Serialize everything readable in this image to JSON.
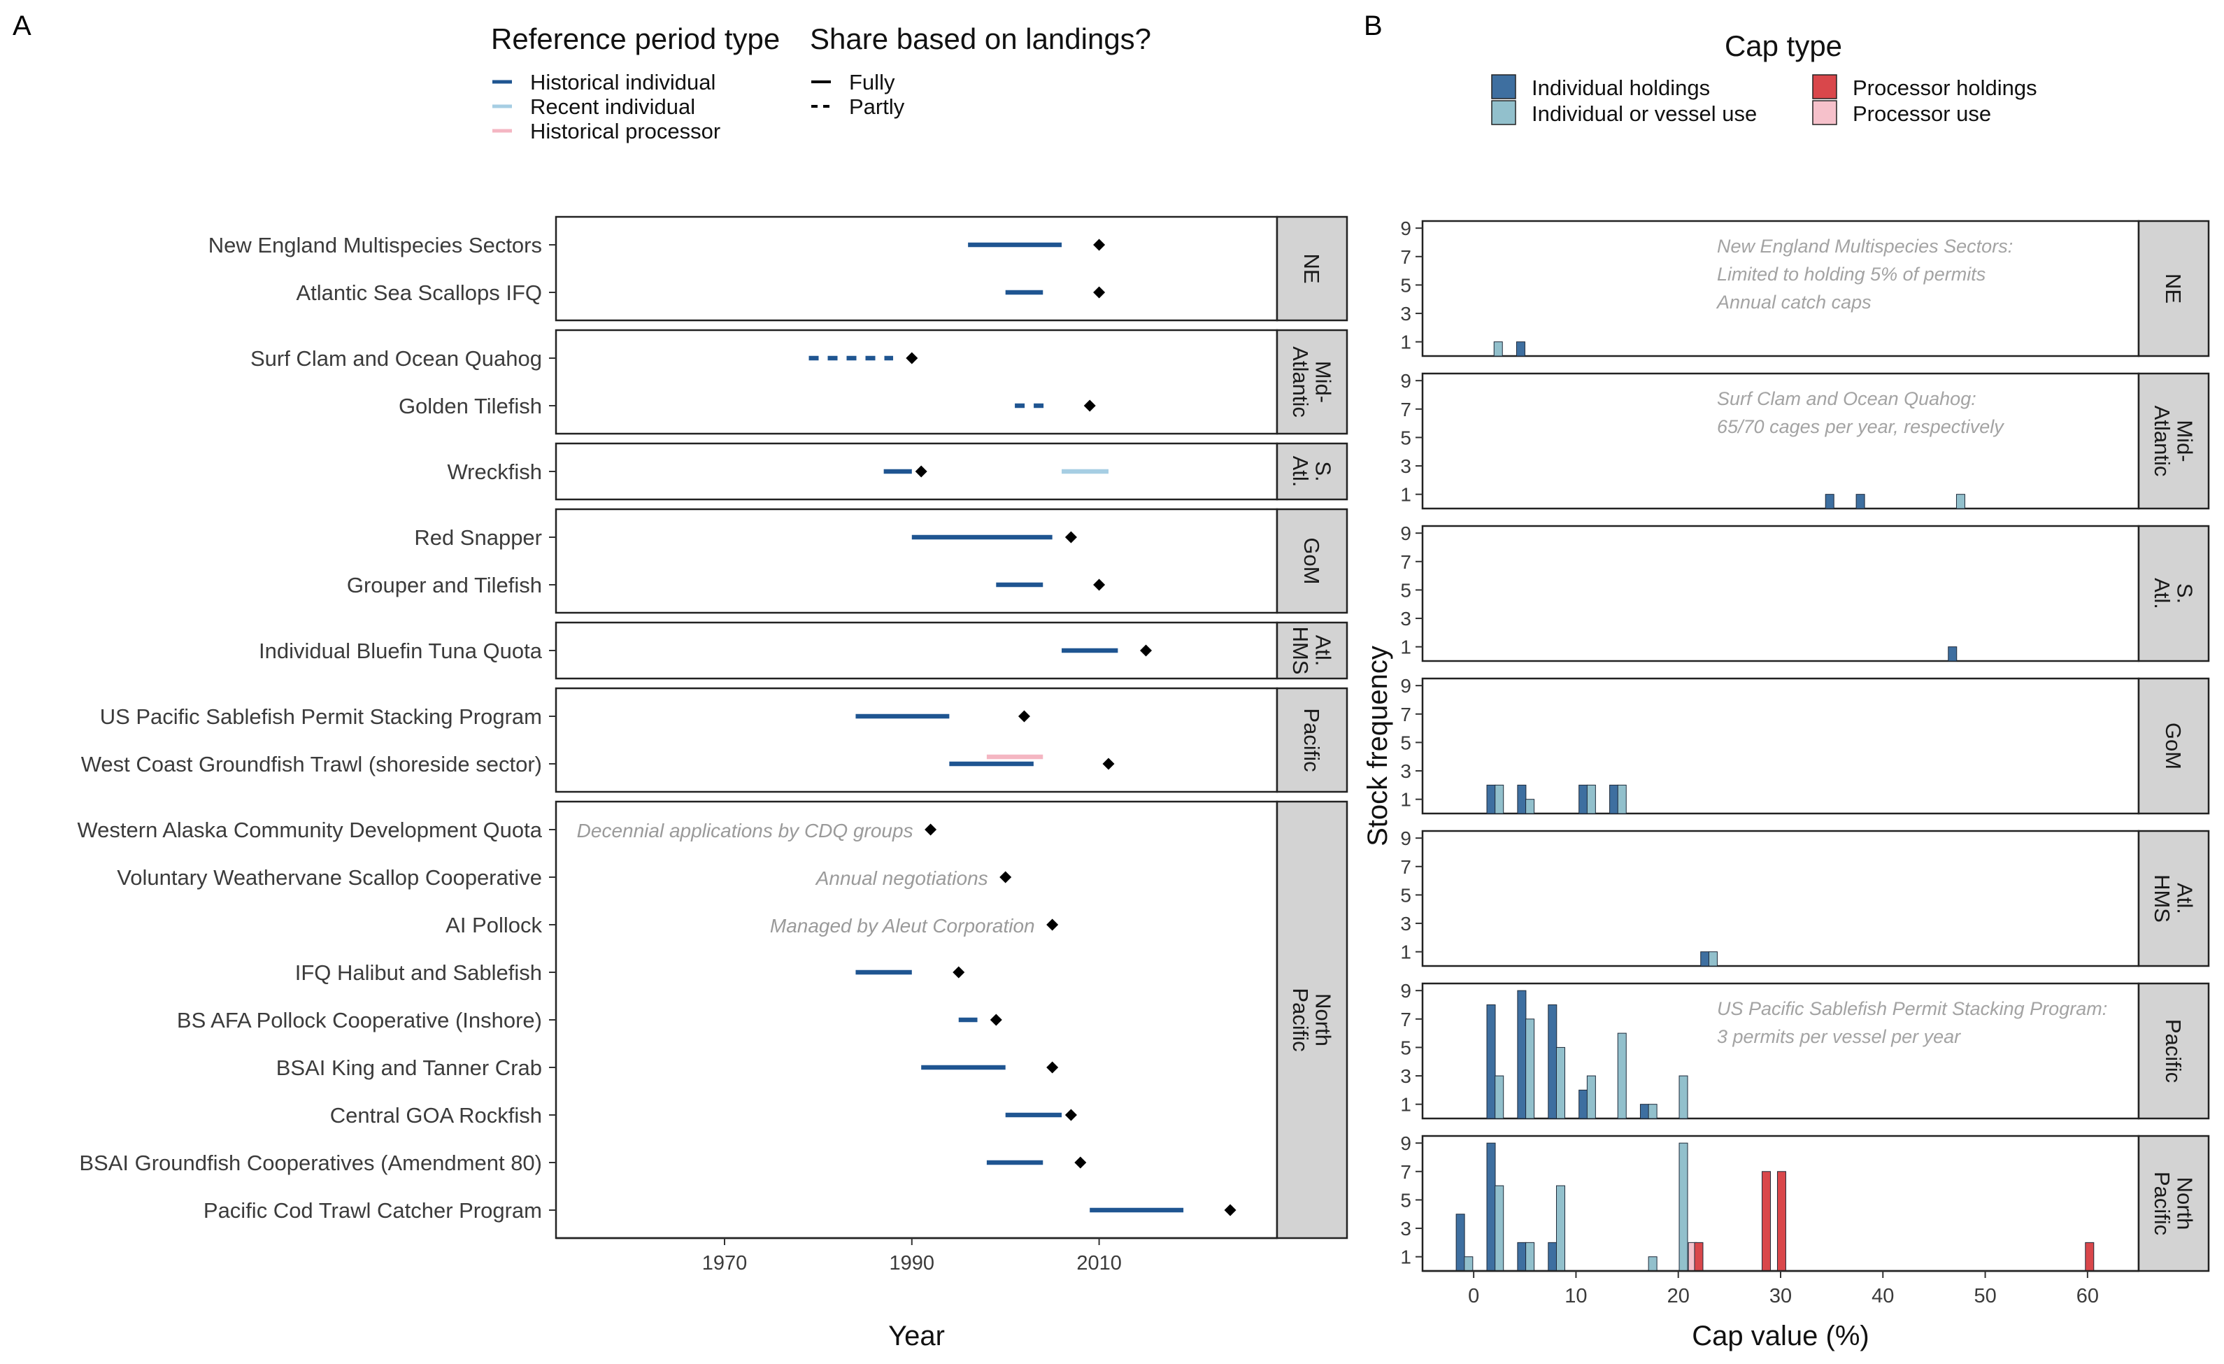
{
  "panel_labels": {
    "a": "A",
    "b": "B"
  },
  "legend_a": {
    "title_ref": "Reference period type",
    "ref_items": [
      {
        "label": "Historical individual",
        "color": "#1F5591"
      },
      {
        "label": "Recent individual",
        "color": "#A6CEE3"
      },
      {
        "label": "Historical processor",
        "color": "#F4B6C2"
      }
    ],
    "title_share": "Share based on landings?",
    "share_items": [
      {
        "label": "Fully",
        "dash": "solid"
      },
      {
        "label": "Partly",
        "dash": "dashed"
      }
    ]
  },
  "legend_b": {
    "title": "Cap type",
    "items": [
      {
        "label": "Individual holdings",
        "color": "#3E6FA0"
      },
      {
        "label": "Individual or vessel use",
        "color": "#92C0CC"
      },
      {
        "label": "Processor holdings",
        "color": "#D9474B"
      },
      {
        "label": "Processor use",
        "color": "#F6C1CB"
      }
    ]
  },
  "chart_data": [
    {
      "type": "timeline",
      "panel": "A",
      "xlabel": "Year",
      "xlim": [
        1952,
        2029
      ],
      "xticks": [
        1970,
        1990,
        2010
      ],
      "facets": [
        {
          "label": "NE",
          "rows": [
            {
              "name": "New England Multispecies Sectors",
              "point": 2010,
              "segments": [
                {
                  "start": 1996,
                  "end": 2006,
                  "type": "Historical individual",
                  "share": "Fully"
                }
              ]
            },
            {
              "name": "Atlantic Sea Scallops IFQ",
              "point": 2010,
              "segments": [
                {
                  "start": 2000,
                  "end": 2004,
                  "type": "Historical individual",
                  "share": "Fully"
                }
              ]
            }
          ]
        },
        {
          "label": "Mid-\nAtlantic",
          "rows": [
            {
              "name": "Surf Clam and Ocean Quahog",
              "point": 1990,
              "segments": [
                {
                  "start": 1979,
                  "end": 1988,
                  "type": "Historical individual",
                  "share": "Partly"
                }
              ]
            },
            {
              "name": "Golden Tilefish",
              "point": 2009,
              "segments": [
                {
                  "start": 2001,
                  "end": 2005,
                  "type": "Historical individual",
                  "share": "Partly"
                }
              ]
            }
          ]
        },
        {
          "label": "S.\nAtl.",
          "rows": [
            {
              "name": "Wreckfish",
              "point": 1991,
              "segments": [
                {
                  "start": 1987,
                  "end": 1990,
                  "type": "Historical individual",
                  "share": "Fully"
                },
                {
                  "start": 2006,
                  "end": 2011,
                  "type": "Recent individual",
                  "share": "Fully"
                }
              ]
            }
          ]
        },
        {
          "label": "GoM",
          "rows": [
            {
              "name": "Red Snapper",
              "point": 2007,
              "segments": [
                {
                  "start": 1990,
                  "end": 2005,
                  "type": "Historical individual",
                  "share": "Fully"
                }
              ]
            },
            {
              "name": "Grouper and Tilefish",
              "point": 2010,
              "segments": [
                {
                  "start": 1999,
                  "end": 2004,
                  "type": "Historical individual",
                  "share": "Fully"
                }
              ]
            }
          ]
        },
        {
          "label": "Atl.\nHMS",
          "rows": [
            {
              "name": "Individual Bluefin Tuna Quota",
              "point": 2015,
              "segments": [
                {
                  "start": 2006,
                  "end": 2012,
                  "type": "Historical individual",
                  "share": "Fully"
                }
              ]
            }
          ]
        },
        {
          "label": "Pacific",
          "rows": [
            {
              "name": "US Pacific Sablefish Permit Stacking Program",
              "point": 2002,
              "segments": [
                {
                  "start": 1984,
                  "end": 1994,
                  "type": "Historical individual",
                  "share": "Fully"
                }
              ]
            },
            {
              "name": "West Coast Groundfish Trawl (shoreside sector)",
              "point": 2011,
              "segments": [
                {
                  "start": 1998,
                  "end": 2004,
                  "type": "Historical processor",
                  "share": "Fully"
                },
                {
                  "start": 1994,
                  "end": 2003,
                  "type": "Historical individual",
                  "share": "Fully"
                }
              ]
            }
          ]
        },
        {
          "label": "North\nPacific",
          "rows": [
            {
              "name": "Western Alaska Community Development Quota",
              "point": 1992,
              "segments": [],
              "note": "Decennial applications by CDQ groups"
            },
            {
              "name": "Voluntary Weathervane Scallop Cooperative",
              "point": 2000,
              "segments": [],
              "note": "Annual negotiations"
            },
            {
              "name": "AI Pollock",
              "point": 2005,
              "segments": [],
              "note": "Managed by Aleut Corporation"
            },
            {
              "name": "IFQ Halibut and Sablefish",
              "point": 1995,
              "segments": [
                {
                  "start": 1984,
                  "end": 1990,
                  "type": "Historical individual",
                  "share": "Fully"
                }
              ]
            },
            {
              "name": "BS AFA Pollock Cooperative (Inshore)",
              "point": 1999,
              "segments": [
                {
                  "start": 1995,
                  "end": 1997,
                  "type": "Historical individual",
                  "share": "Fully"
                }
              ]
            },
            {
              "name": "BSAI King and Tanner Crab",
              "point": 2005,
              "segments": [
                {
                  "start": 1991,
                  "end": 2000,
                  "type": "Historical individual",
                  "share": "Fully"
                }
              ]
            },
            {
              "name": "Central GOA Rockfish",
              "point": 2007,
              "segments": [
                {
                  "start": 2000,
                  "end": 2006,
                  "type": "Historical individual",
                  "share": "Fully"
                }
              ]
            },
            {
              "name": "BSAI Groundfish Cooperatives (Amendment 80)",
              "point": 2008,
              "segments": [
                {
                  "start": 1998,
                  "end": 2004,
                  "type": "Historical individual",
                  "share": "Fully"
                }
              ]
            },
            {
              "name": "Pacific Cod Trawl Catcher Program",
              "point": 2024,
              "segments": [
                {
                  "start": 2009,
                  "end": 2019,
                  "type": "Historical individual",
                  "share": "Fully"
                }
              ]
            }
          ]
        }
      ]
    },
    {
      "type": "bar",
      "panel": "B",
      "xlabel": "Cap value (%)",
      "ylabel": "Stock frequency",
      "xlim": [
        -5,
        65
      ],
      "xticks": [
        0,
        10,
        20,
        30,
        40,
        50,
        60
      ],
      "ylim": [
        0,
        9.5
      ],
      "yticks": [
        1,
        3,
        5,
        7,
        9
      ],
      "facets": [
        {
          "label": "NE",
          "note": [
            "New England Multispecies Sectors:",
            "Limited to holding 5% of permits",
            "Annual catch caps"
          ],
          "bars": [
            {
              "x": 2.4,
              "type": "Individual or vessel use",
              "value": 1
            },
            {
              "x": 4.6,
              "type": "Individual holdings",
              "value": 1
            }
          ]
        },
        {
          "label": "Mid-\nAtlantic",
          "note": [
            "Surf Clam and Ocean Quahog:",
            "65/70 cages per year, respectively"
          ],
          "bars": [
            {
              "x": 34.8,
              "type": "Individual holdings",
              "value": 1
            },
            {
              "x": 37.8,
              "type": "Individual holdings",
              "value": 1
            },
            {
              "x": 47.6,
              "type": "Individual or vessel use",
              "value": 1
            }
          ]
        },
        {
          "label": "S.\nAtl.",
          "note": [],
          "bars": [
            {
              "x": 46.8,
              "type": "Individual holdings",
              "value": 1
            }
          ]
        },
        {
          "label": "GoM",
          "note": [],
          "bars": [
            {
              "x": 1.7,
              "type": "Individual holdings",
              "value": 2
            },
            {
              "x": 2.5,
              "type": "Individual or vessel use",
              "value": 2
            },
            {
              "x": 4.7,
              "type": "Individual holdings",
              "value": 2
            },
            {
              "x": 5.5,
              "type": "Individual or vessel use",
              "value": 1
            },
            {
              "x": 10.7,
              "type": "Individual holdings",
              "value": 2
            },
            {
              "x": 11.5,
              "type": "Individual or vessel use",
              "value": 2
            },
            {
              "x": 13.7,
              "type": "Individual holdings",
              "value": 2
            },
            {
              "x": 14.5,
              "type": "Individual or vessel use",
              "value": 2
            }
          ]
        },
        {
          "label": "Atl.\nHMS",
          "note": [],
          "bars": [
            {
              "x": 22.6,
              "type": "Individual holdings",
              "value": 1
            },
            {
              "x": 23.4,
              "type": "Individual or vessel use",
              "value": 1
            }
          ]
        },
        {
          "label": "Pacific",
          "note": [
            "US Pacific Sablefish Permit Stacking Program:",
            "3 permits per vessel per year"
          ],
          "bars": [
            {
              "x": 1.7,
              "type": "Individual holdings",
              "value": 8
            },
            {
              "x": 2.5,
              "type": "Individual or vessel use",
              "value": 3
            },
            {
              "x": 4.7,
              "type": "Individual holdings",
              "value": 9
            },
            {
              "x": 5.5,
              "type": "Individual or vessel use",
              "value": 7
            },
            {
              "x": 7.7,
              "type": "Individual holdings",
              "value": 8
            },
            {
              "x": 8.5,
              "type": "Individual or vessel use",
              "value": 5
            },
            {
              "x": 10.7,
              "type": "Individual holdings",
              "value": 2
            },
            {
              "x": 11.5,
              "type": "Individual or vessel use",
              "value": 3
            },
            {
              "x": 14.5,
              "type": "Individual or vessel use",
              "value": 6
            },
            {
              "x": 16.7,
              "type": "Individual holdings",
              "value": 1
            },
            {
              "x": 17.5,
              "type": "Individual or vessel use",
              "value": 1
            },
            {
              "x": 20.5,
              "type": "Individual or vessel use",
              "value": 3
            }
          ]
        },
        {
          "label": "North\nPacific",
          "note": [],
          "bars": [
            {
              "x": -1.3,
              "type": "Individual holdings",
              "value": 4
            },
            {
              "x": -0.5,
              "type": "Individual or vessel use",
              "value": 1
            },
            {
              "x": 1.7,
              "type": "Individual holdings",
              "value": 9
            },
            {
              "x": 2.5,
              "type": "Individual or vessel use",
              "value": 6
            },
            {
              "x": 4.7,
              "type": "Individual holdings",
              "value": 2
            },
            {
              "x": 5.5,
              "type": "Individual or vessel use",
              "value": 2
            },
            {
              "x": 7.7,
              "type": "Individual holdings",
              "value": 2
            },
            {
              "x": 8.5,
              "type": "Individual or vessel use",
              "value": 6
            },
            {
              "x": 17.5,
              "type": "Individual or vessel use",
              "value": 1
            },
            {
              "x": 20.5,
              "type": "Individual or vessel use",
              "value": 9
            },
            {
              "x": 21.4,
              "type": "Processor use",
              "value": 2
            },
            {
              "x": 22.0,
              "type": "Processor holdings",
              "value": 2
            },
            {
              "x": 28.6,
              "type": "Processor holdings",
              "value": 7
            },
            {
              "x": 30.1,
              "type": "Processor holdings",
              "value": 7
            },
            {
              "x": 60.2,
              "type": "Processor holdings",
              "value": 2
            }
          ]
        }
      ]
    }
  ]
}
